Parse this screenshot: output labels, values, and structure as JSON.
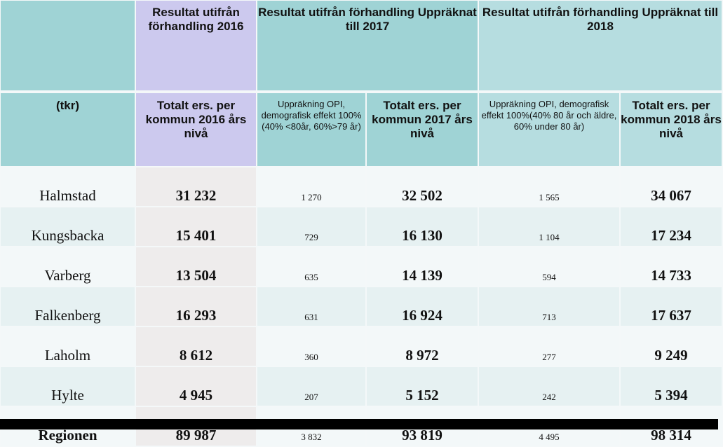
{
  "header": {
    "g2016": "Resultat utifrån förhandling 2016",
    "g2017": "Resultat utifrån förhandling Uppräknat till 2017",
    "g2018": "Resultat utifrån förhandling Uppräknat till 2018"
  },
  "subheader": {
    "unit": "(tkr)",
    "tot2016": "Totalt ers. per kommun 2016 års nivå",
    "upp2017": "Uppräkning OPI, demografisk effekt 100%(40% <80år, 60%>79 år)",
    "tot2017": "Totalt ers. per kommun 2017 års nivå",
    "upp2018": "Uppräkning OPI, demografisk effekt 100%(40% 80 år och äldre, 60% under 80 år)",
    "tot2018": "Totalt ers. per kommun 2018 års nivå"
  },
  "rows": [
    {
      "name": "Halmstad",
      "tot2016": "31 232",
      "upp2017": "1 270",
      "tot2017": "32 502",
      "upp2018": "1 565",
      "tot2018": "34 067"
    },
    {
      "name": "Kungsbacka",
      "tot2016": "15 401",
      "upp2017": "729",
      "tot2017": "16 130",
      "upp2018": "1 104",
      "tot2018": "17 234"
    },
    {
      "name": "Varberg",
      "tot2016": "13 504",
      "upp2017": "635",
      "tot2017": "14 139",
      "upp2018": "594",
      "tot2018": "14 733"
    },
    {
      "name": "Falkenberg",
      "tot2016": "16 293",
      "upp2017": "631",
      "tot2017": "16 924",
      "upp2018": "713",
      "tot2018": "17 637"
    },
    {
      "name": "Laholm",
      "tot2016": "8 612",
      "upp2017": "360",
      "tot2017": "8 972",
      "upp2018": "277",
      "tot2018": "9 249"
    },
    {
      "name": "Hylte",
      "tot2016": "4 945",
      "upp2017": "207",
      "tot2017": "5 152",
      "upp2018": "242",
      "tot2018": "5 394"
    },
    {
      "name": "Regionen",
      "tot2016": "89 987",
      "upp2017": "3 832",
      "tot2017": "93 819",
      "upp2018": "4 495",
      "tot2018": "98 314"
    }
  ]
}
